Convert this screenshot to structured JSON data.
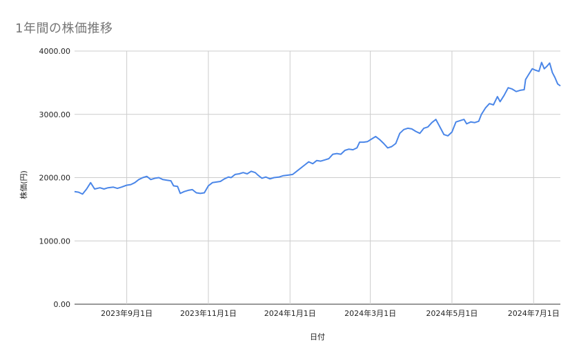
{
  "chart_data": {
    "type": "line",
    "title": "1年間の株価推移",
    "xlabel": "日付",
    "ylabel": "株価(円)",
    "ylim": [
      0,
      4000
    ],
    "yticks": [
      "0.00",
      "1000.00",
      "2000.00",
      "3000.00",
      "4000.00"
    ],
    "xticks": [
      {
        "date": "2023-09-01",
        "label": "2023年9月1日"
      },
      {
        "date": "2023-11-01",
        "label": "2023年11月1日"
      },
      {
        "date": "2024-01-01",
        "label": "2024年1月1日"
      },
      {
        "date": "2024-03-01",
        "label": "2024年3月1日"
      },
      {
        "date": "2024-05-01",
        "label": "2024年5月1日"
      },
      {
        "date": "2024-07-01",
        "label": "2024年7月1日"
      }
    ],
    "xlim": [
      "2023-07-24",
      "2024-07-21"
    ],
    "grid": true,
    "series": [
      {
        "color": "#4a86e8",
        "points": [
          [
            "2023-07-24",
            1780
          ],
          [
            "2023-07-27",
            1770
          ],
          [
            "2023-07-30",
            1740
          ],
          [
            "2023-08-02",
            1820
          ],
          [
            "2023-08-05",
            1920
          ],
          [
            "2023-08-08",
            1820
          ],
          [
            "2023-08-12",
            1840
          ],
          [
            "2023-08-15",
            1820
          ],
          [
            "2023-08-18",
            1840
          ],
          [
            "2023-08-22",
            1850
          ],
          [
            "2023-08-25",
            1830
          ],
          [
            "2023-08-28",
            1850
          ],
          [
            "2023-09-01",
            1880
          ],
          [
            "2023-09-04",
            1890
          ],
          [
            "2023-09-07",
            1920
          ],
          [
            "2023-09-10",
            1970
          ],
          [
            "2023-09-13",
            2000
          ],
          [
            "2023-09-16",
            2020
          ],
          [
            "2023-09-19",
            1970
          ],
          [
            "2023-09-22",
            1990
          ],
          [
            "2023-09-25",
            2000
          ],
          [
            "2023-09-28",
            1970
          ],
          [
            "2023-10-01",
            1960
          ],
          [
            "2023-10-04",
            1950
          ],
          [
            "2023-10-06",
            1870
          ],
          [
            "2023-10-09",
            1860
          ],
          [
            "2023-10-11",
            1750
          ],
          [
            "2023-10-14",
            1780
          ],
          [
            "2023-10-17",
            1800
          ],
          [
            "2023-10-20",
            1810
          ],
          [
            "2023-10-23",
            1760
          ],
          [
            "2023-10-26",
            1750
          ],
          [
            "2023-10-29",
            1760
          ],
          [
            "2023-11-01",
            1870
          ],
          [
            "2023-11-04",
            1920
          ],
          [
            "2023-11-07",
            1930
          ],
          [
            "2023-11-10",
            1940
          ],
          [
            "2023-11-13",
            1980
          ],
          [
            "2023-11-16",
            2010
          ],
          [
            "2023-11-18",
            2000
          ],
          [
            "2023-11-21",
            2050
          ],
          [
            "2023-11-24",
            2060
          ],
          [
            "2023-11-27",
            2080
          ],
          [
            "2023-11-30",
            2060
          ],
          [
            "2023-12-03",
            2100
          ],
          [
            "2023-12-06",
            2080
          ],
          [
            "2023-12-08",
            2040
          ],
          [
            "2023-12-11",
            1990
          ],
          [
            "2023-12-14",
            2010
          ],
          [
            "2023-12-17",
            1980
          ],
          [
            "2023-12-20",
            2000
          ],
          [
            "2023-12-24",
            2010
          ],
          [
            "2023-12-27",
            2030
          ],
          [
            "2023-12-31",
            2040
          ],
          [
            "2024-01-03",
            2050
          ],
          [
            "2024-01-06",
            2100
          ],
          [
            "2024-01-09",
            2150
          ],
          [
            "2024-01-12",
            2200
          ],
          [
            "2024-01-15",
            2250
          ],
          [
            "2024-01-18",
            2220
          ],
          [
            "2024-01-21",
            2270
          ],
          [
            "2024-01-24",
            2260
          ],
          [
            "2024-01-27",
            2280
          ],
          [
            "2024-01-30",
            2300
          ],
          [
            "2024-02-02",
            2370
          ],
          [
            "2024-02-05",
            2380
          ],
          [
            "2024-02-08",
            2370
          ],
          [
            "2024-02-11",
            2430
          ],
          [
            "2024-02-14",
            2450
          ],
          [
            "2024-02-17",
            2440
          ],
          [
            "2024-02-20",
            2470
          ],
          [
            "2024-02-22",
            2560
          ],
          [
            "2024-02-25",
            2560
          ],
          [
            "2024-02-28",
            2570
          ],
          [
            "2024-03-02",
            2610
          ],
          [
            "2024-03-05",
            2650
          ],
          [
            "2024-03-08",
            2600
          ],
          [
            "2024-03-11",
            2540
          ],
          [
            "2024-03-14",
            2470
          ],
          [
            "2024-03-17",
            2490
          ],
          [
            "2024-03-20",
            2540
          ],
          [
            "2024-03-23",
            2700
          ],
          [
            "2024-03-26",
            2760
          ],
          [
            "2024-03-29",
            2780
          ],
          [
            "2024-04-01",
            2770
          ],
          [
            "2024-04-04",
            2730
          ],
          [
            "2024-04-07",
            2700
          ],
          [
            "2024-04-10",
            2780
          ],
          [
            "2024-04-13",
            2800
          ],
          [
            "2024-04-16",
            2870
          ],
          [
            "2024-04-19",
            2920
          ],
          [
            "2024-04-22",
            2800
          ],
          [
            "2024-04-25",
            2680
          ],
          [
            "2024-04-28",
            2660
          ],
          [
            "2024-05-01",
            2720
          ],
          [
            "2024-05-04",
            2880
          ],
          [
            "2024-05-07",
            2900
          ],
          [
            "2024-05-10",
            2920
          ],
          [
            "2024-05-12",
            2850
          ],
          [
            "2024-05-15",
            2880
          ],
          [
            "2024-05-18",
            2870
          ],
          [
            "2024-05-21",
            2890
          ],
          [
            "2024-05-23",
            3000
          ],
          [
            "2024-05-26",
            3100
          ],
          [
            "2024-05-29",
            3170
          ],
          [
            "2024-06-01",
            3150
          ],
          [
            "2024-06-04",
            3280
          ],
          [
            "2024-06-06",
            3200
          ],
          [
            "2024-06-09",
            3300
          ],
          [
            "2024-06-12",
            3420
          ],
          [
            "2024-06-15",
            3400
          ],
          [
            "2024-06-18",
            3360
          ],
          [
            "2024-06-21",
            3380
          ],
          [
            "2024-06-24",
            3390
          ],
          [
            "2024-06-25",
            3550
          ],
          [
            "2024-06-27",
            3620
          ],
          [
            "2024-06-30",
            3720
          ],
          [
            "2024-07-02",
            3700
          ],
          [
            "2024-07-05",
            3680
          ],
          [
            "2024-07-07",
            3820
          ],
          [
            "2024-07-09",
            3720
          ],
          [
            "2024-07-11",
            3760
          ],
          [
            "2024-07-13",
            3810
          ],
          [
            "2024-07-15",
            3660
          ],
          [
            "2024-07-17",
            3580
          ],
          [
            "2024-07-19",
            3480
          ],
          [
            "2024-07-21",
            3450
          ]
        ]
      }
    ]
  }
}
